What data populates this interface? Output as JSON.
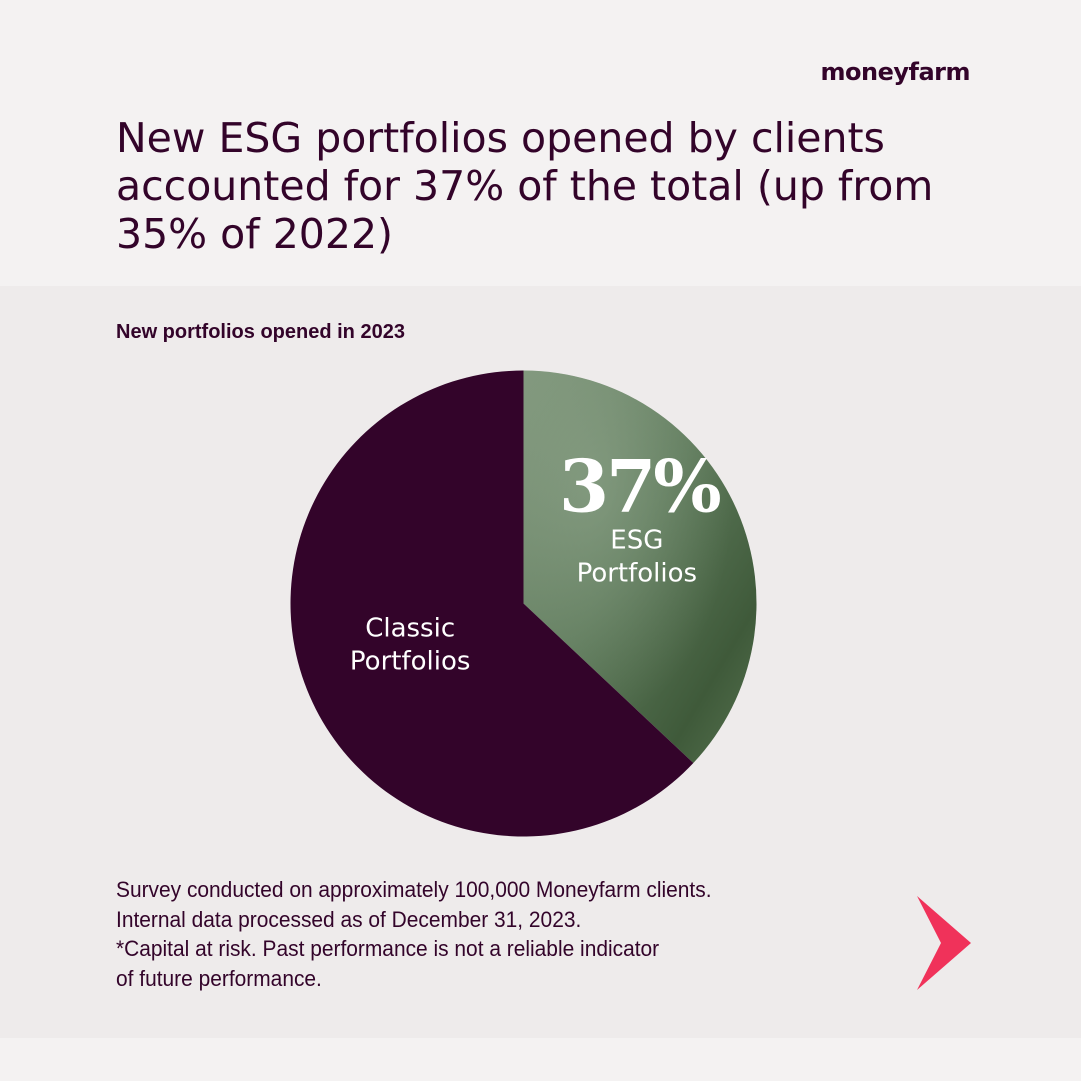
{
  "brand": {
    "logo_text": "moneyfarm"
  },
  "headline": "New ESG portfolios opened by clients accounted for 37% of the total (up from 35% of 2022)",
  "chart_data": {
    "type": "pie",
    "title": "New portfolios opened in 2023",
    "slices": [
      {
        "label": "ESG Portfolios",
        "label_lines": [
          "ESG",
          "Portfolios"
        ],
        "value": 37,
        "display": "37%",
        "color": "#587455"
      },
      {
        "label": "Classic Portfolios",
        "label_lines": [
          "Classic",
          "Portfolios"
        ],
        "value": 63,
        "color": "#33042a"
      }
    ],
    "legend": "none"
  },
  "notes": [
    "Survey conducted on approximately 100,000 Moneyfarm clients.",
    "Internal data processed as of December 31, 2023.",
    "*Capital at risk. Past performance is not a reliable indicator",
    "of future performance."
  ],
  "colors": {
    "brand": "#33042a",
    "accent": "#f0325a",
    "esg": "#587455",
    "background": "#f4f2f2",
    "panel": "#eeebeb"
  },
  "icons": {
    "next": "chevron-right-icon"
  }
}
